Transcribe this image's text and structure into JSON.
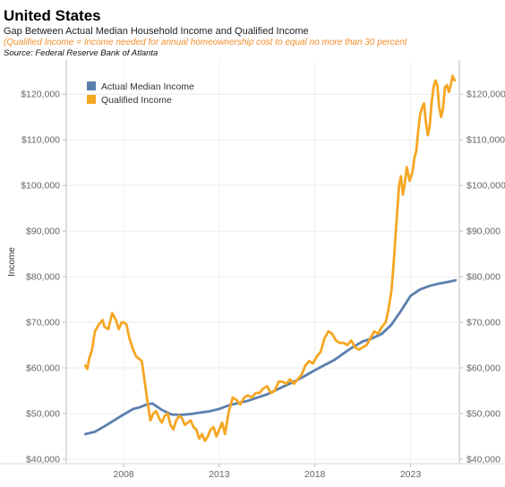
{
  "header": {
    "title": "United States",
    "subtitle": "Gap Between Actual Median Household Income and Qualified Income",
    "note": "(Qualified Income = Income needed for annual homeownership cost to equal no more than 30 percent",
    "source": "Source: Federal Reserve Bank of Atlanta"
  },
  "chart_data": {
    "type": "line",
    "ylabel": "Income",
    "xlabel": "",
    "xlim": [
      2005.0,
      2025.55
    ],
    "ylim": [
      39000,
      127500
    ],
    "x_ticks": [
      2008,
      2013,
      2018,
      2023
    ],
    "x_tick_labels": [
      "2008",
      "2013",
      "2018",
      "2023"
    ],
    "y_ticks": [
      40000,
      50000,
      60000,
      70000,
      80000,
      90000,
      100000,
      110000,
      120000
    ],
    "y_tick_labels": [
      "$40,000",
      "$50,000",
      "$60,000",
      "$70,000",
      "$80,000",
      "$90,000",
      "$100,000",
      "$110,000",
      "$120,000"
    ],
    "dual_y_axis": true,
    "grid": true,
    "legend_position": "top-left",
    "series": [
      {
        "name": "Actual Median Income",
        "color": "#5b7fad",
        "x": [
          2006.0,
          2006.5,
          2007.0,
          2007.5,
          2008.0,
          2008.5,
          2008.8,
          2009.2,
          2009.5,
          2010.0,
          2010.5,
          2011.0,
          2011.5,
          2012.0,
          2012.5,
          2013.0,
          2013.5,
          2014.0,
          2014.5,
          2015.0,
          2015.5,
          2016.0,
          2016.5,
          2017.0,
          2017.5,
          2018.0,
          2018.5,
          2019.0,
          2019.5,
          2020.0,
          2020.5,
          2021.0,
          2021.5,
          2022.0,
          2022.5,
          2023.0,
          2023.5,
          2024.0,
          2024.5,
          2025.0,
          2025.35
        ],
        "values": [
          45500,
          46000,
          47200,
          48500,
          49800,
          51000,
          51300,
          52000,
          52200,
          50800,
          49800,
          49700,
          49900,
          50200,
          50500,
          51000,
          51800,
          52300,
          52800,
          53500,
          54200,
          55200,
          56200,
          57200,
          58300,
          59500,
          60600,
          61700,
          63200,
          64600,
          65800,
          66500,
          67500,
          69500,
          72500,
          75800,
          77200,
          78000,
          78500,
          78900,
          79200
        ]
      },
      {
        "name": "Qualified Income",
        "color": "#f5a623",
        "x": [
          2006.0,
          2006.1,
          2006.2,
          2006.35,
          2006.5,
          2006.7,
          2006.9,
          2007.0,
          2007.2,
          2007.4,
          2007.6,
          2007.75,
          2007.9,
          2008.0,
          2008.15,
          2008.3,
          2008.5,
          2008.65,
          2008.8,
          2008.95,
          2009.1,
          2009.25,
          2009.4,
          2009.55,
          2009.7,
          2009.85,
          2010.0,
          2010.15,
          2010.3,
          2010.45,
          2010.6,
          2010.75,
          2010.9,
          2011.05,
          2011.2,
          2011.35,
          2011.5,
          2011.65,
          2011.8,
          2011.95,
          2012.1,
          2012.25,
          2012.4,
          2012.55,
          2012.7,
          2012.85,
          2013.0,
          2013.15,
          2013.3,
          2013.5,
          2013.7,
          2013.9,
          2014.1,
          2014.3,
          2014.5,
          2014.7,
          2014.9,
          2015.1,
          2015.3,
          2015.5,
          2015.7,
          2015.9,
          2016.1,
          2016.3,
          2016.5,
          2016.7,
          2016.9,
          2017.1,
          2017.3,
          2017.5,
          2017.7,
          2017.9,
          2018.1,
          2018.3,
          2018.5,
          2018.7,
          2018.9,
          2019.1,
          2019.3,
          2019.5,
          2019.7,
          2019.9,
          2020.1,
          2020.3,
          2020.5,
          2020.7,
          2020.9,
          2021.1,
          2021.3,
          2021.5,
          2021.7,
          2021.85,
          2022.0,
          2022.1,
          2022.2,
          2022.3,
          2022.4,
          2022.5,
          2022.6,
          2022.7,
          2022.8,
          2022.95,
          2023.1,
          2023.2,
          2023.3,
          2023.4,
          2023.5,
          2023.6,
          2023.7,
          2023.8,
          2023.9,
          2024.0,
          2024.1,
          2024.2,
          2024.3,
          2024.4,
          2024.5,
          2024.6,
          2024.7,
          2024.8,
          2024.9,
          2025.0,
          2025.1,
          2025.2,
          2025.3
        ],
        "values": [
          60500,
          59800,
          62000,
          64000,
          68000,
          69500,
          70500,
          69000,
          68500,
          72000,
          70500,
          68500,
          70000,
          70000,
          69500,
          66500,
          64000,
          62500,
          62000,
          61500,
          57000,
          52500,
          48500,
          50000,
          50500,
          49000,
          48000,
          49500,
          50000,
          47500,
          46500,
          48500,
          49500,
          49000,
          47500,
          48000,
          48500,
          47000,
          46500,
          44500,
          45500,
          44000,
          45000,
          46500,
          47000,
          45000,
          46500,
          48000,
          45500,
          50500,
          53500,
          53000,
          52000,
          53500,
          54000,
          53500,
          54500,
          54500,
          55500,
          56000,
          54500,
          55000,
          57000,
          57000,
          56500,
          57500,
          56500,
          57500,
          58500,
          60500,
          61500,
          61000,
          62500,
          63500,
          66500,
          68000,
          67500,
          66000,
          65500,
          65500,
          65000,
          66000,
          64500,
          64000,
          64500,
          65000,
          66500,
          68000,
          67500,
          69000,
          70000,
          73000,
          77000,
          82000,
          88000,
          94000,
          100000,
          102000,
          98000,
          100500,
          104000,
          101000,
          103000,
          106000,
          107500,
          112000,
          115500,
          117000,
          118000,
          114000,
          111000,
          113000,
          118000,
          121500,
          123000,
          122000,
          117000,
          115000,
          117000,
          121500,
          122000,
          120500,
          122000,
          124000,
          123000
        ]
      }
    ]
  }
}
